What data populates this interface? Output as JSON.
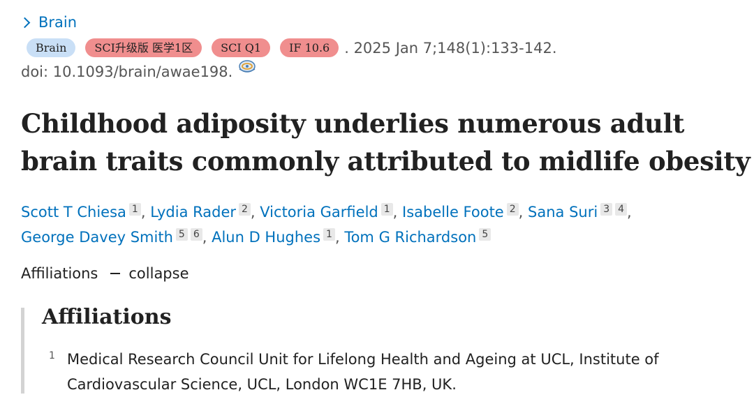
{
  "journal": {
    "name": "Brain"
  },
  "badges": [
    {
      "label": "Brain",
      "kind": "journal"
    },
    {
      "label": "SCI升级版 医学1区",
      "kind": "rank"
    },
    {
      "label": "SCI Q1",
      "kind": "rank"
    },
    {
      "label": "IF 10.6",
      "kind": "rank"
    }
  ],
  "citation": ". 2025 Jan 7;148(1):133-142.",
  "doi": "doi: 10.1093/brain/awae198.",
  "title": "Childhood adiposity underlies numerous adult brain traits commonly attributed to midlife obesity",
  "authors": [
    {
      "name": "Scott T Chiesa",
      "affs": [
        "1"
      ]
    },
    {
      "name": "Lydia Rader",
      "affs": [
        "2"
      ]
    },
    {
      "name": "Victoria Garfield",
      "affs": [
        "1"
      ]
    },
    {
      "name": "Isabelle Foote",
      "affs": [
        "2"
      ]
    },
    {
      "name": "Sana Suri",
      "affs": [
        "3",
        "4"
      ]
    },
    {
      "name": "George Davey Smith",
      "affs": [
        "5",
        "6"
      ]
    },
    {
      "name": "Alun D Hughes",
      "affs": [
        "1"
      ]
    },
    {
      "name": "Tom G Richardson",
      "affs": [
        "5"
      ]
    }
  ],
  "affiliations_toggle": {
    "label": "Affiliations",
    "action": "collapse"
  },
  "affiliations": {
    "heading": "Affiliations",
    "items": [
      {
        "number": "1",
        "line1": "Medical Research Council Unit for Lifelong Health and Ageing at UCL, Institute of",
        "line2": "Cardiovascular Science, UCL, London WC1E 7HB, UK."
      }
    ]
  },
  "colors": {
    "link": "#0071bc",
    "badge_journal": "#c9dff6",
    "badge_rank": "#f08e8e"
  },
  "icons": {
    "open_access": "open-access-icon"
  }
}
